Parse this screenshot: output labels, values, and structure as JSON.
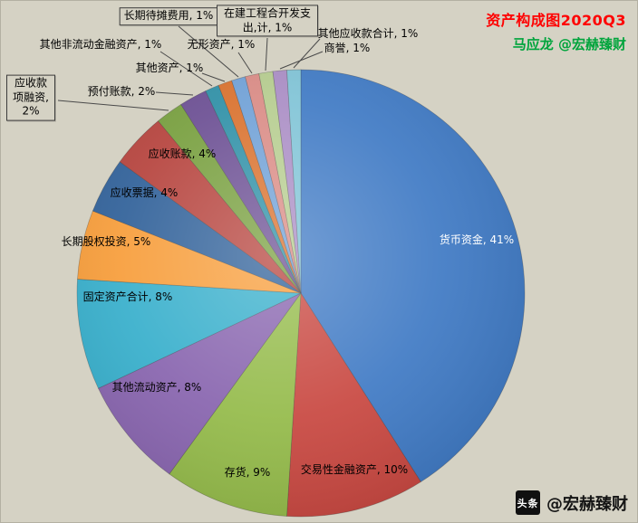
{
  "header": {
    "title": "资产构成图2020Q3",
    "subtitle": "马应龙 @宏赫臻财",
    "title_color": "#ff0000",
    "subtitle_color": "#00a43c"
  },
  "watermark": {
    "badge": "头条",
    "handle": "@宏赫臻财"
  },
  "canvas": {
    "background": "#d5d2c4"
  },
  "chart_data": {
    "type": "pie",
    "title": "资产构成图2020Q3",
    "value_unit": "%",
    "start_angle_deg": 0,
    "direction": "clockwise",
    "legend": "none",
    "label_format": "{label}, {value}%",
    "slices": [
      {
        "label": "货币资金",
        "value": 41,
        "color": "#3e79c4"
      },
      {
        "label": "交易性金融资产",
        "value": 10,
        "color": "#c8463f"
      },
      {
        "label": "存货",
        "value": 9,
        "color": "#93ba48"
      },
      {
        "label": "其他流动资产",
        "value": 8,
        "color": "#8763ae"
      },
      {
        "label": "固定资产合计",
        "value": 8,
        "color": "#35aecb"
      },
      {
        "label": "长期股权投资",
        "value": 5,
        "color": "#f79c38"
      },
      {
        "label": "应收票据",
        "value": 4,
        "color": "#2e5f98"
      },
      {
        "label": "应收账款",
        "value": 4,
        "color": "#b5413b"
      },
      {
        "label": "应收款项融资",
        "value": 2,
        "color": "#769e3c"
      },
      {
        "label": "预付账款",
        "value": 2,
        "color": "#6a4d92"
      },
      {
        "label": "其他非流动金融资产",
        "value": 1,
        "color": "#2d8fa6"
      },
      {
        "label": "其他资产",
        "value": 1,
        "color": "#d9702c"
      },
      {
        "label": "长期待摊费用",
        "value": 1,
        "color": "#6fa0d6"
      },
      {
        "label": "无形资产",
        "value": 1,
        "color": "#d98a84"
      },
      {
        "label": "在建工程合开发支出,计",
        "value": 1,
        "color": "#b5cc8e"
      },
      {
        "label": "商誉",
        "value": 1,
        "color": "#a98cc4"
      },
      {
        "label": "其他应收款合计",
        "value": 1,
        "color": "#7fc3d6"
      }
    ]
  }
}
